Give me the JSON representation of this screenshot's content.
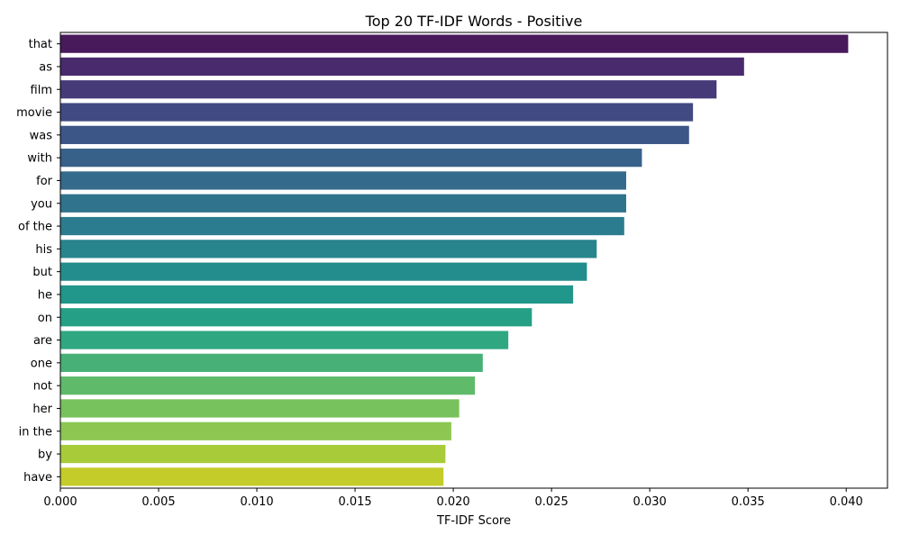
{
  "chart_data": {
    "type": "bar",
    "orientation": "horizontal",
    "title": "Top 20 TF-IDF Words - Positive",
    "xlabel": "TF-IDF Score",
    "ylabel": "",
    "xlim": [
      0,
      0.0421
    ],
    "xticks": [
      0.0,
      0.005,
      0.01,
      0.015,
      0.02,
      0.025,
      0.03,
      0.035,
      0.04
    ],
    "xtick_labels": [
      "0.000",
      "0.005",
      "0.010",
      "0.015",
      "0.020",
      "0.025",
      "0.030",
      "0.035",
      "0.040"
    ],
    "grid": false,
    "legend": "none",
    "categories": [
      "that",
      "as",
      "film",
      "movie",
      "was",
      "with",
      "for",
      "you",
      "of the",
      "his",
      "but",
      "he",
      "on",
      "are",
      "one",
      "not",
      "her",
      "in the",
      "by",
      "have"
    ],
    "values": [
      0.0401,
      0.0348,
      0.0334,
      0.0322,
      0.032,
      0.0296,
      0.0288,
      0.0288,
      0.0287,
      0.0273,
      0.0268,
      0.0261,
      0.024,
      0.0228,
      0.0215,
      0.0211,
      0.0203,
      0.0199,
      0.0196,
      0.0195
    ],
    "colors": [
      "#481a5b",
      "#482a6d",
      "#463a79",
      "#414a82",
      "#3b5687",
      "#38618a",
      "#346a8c",
      "#2f738d",
      "#2b7c8e",
      "#28848d",
      "#228d8c",
      "#21968a",
      "#259f86",
      "#2fa882",
      "#47b076",
      "#5fba6a",
      "#78c25e",
      "#8dc751",
      "#a8cb3a",
      "#c4cc2a"
    ]
  }
}
